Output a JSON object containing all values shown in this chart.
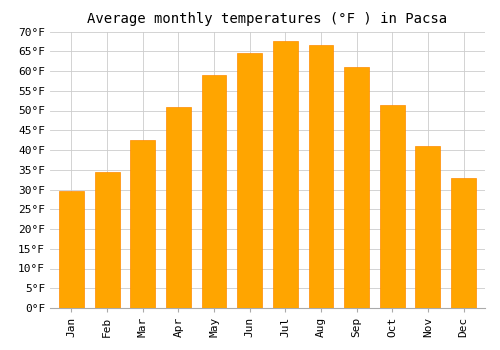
{
  "title": "Average monthly temperatures (°F ) in Pacsa",
  "months": [
    "Jan",
    "Feb",
    "Mar",
    "Apr",
    "May",
    "Jun",
    "Jul",
    "Aug",
    "Sep",
    "Oct",
    "Nov",
    "Dec"
  ],
  "values": [
    29.5,
    34.5,
    42.5,
    51.0,
    59.0,
    64.5,
    67.5,
    66.5,
    61.0,
    51.5,
    41.0,
    33.0
  ],
  "bar_color": "#FFA500",
  "bar_edge_color": "#FF8C00",
  "background_color": "#FFFFFF",
  "grid_color": "#CCCCCC",
  "ylim": [
    0,
    70
  ],
  "ytick_step": 5,
  "title_fontsize": 10,
  "tick_fontsize": 8,
  "tick_font": "monospace"
}
